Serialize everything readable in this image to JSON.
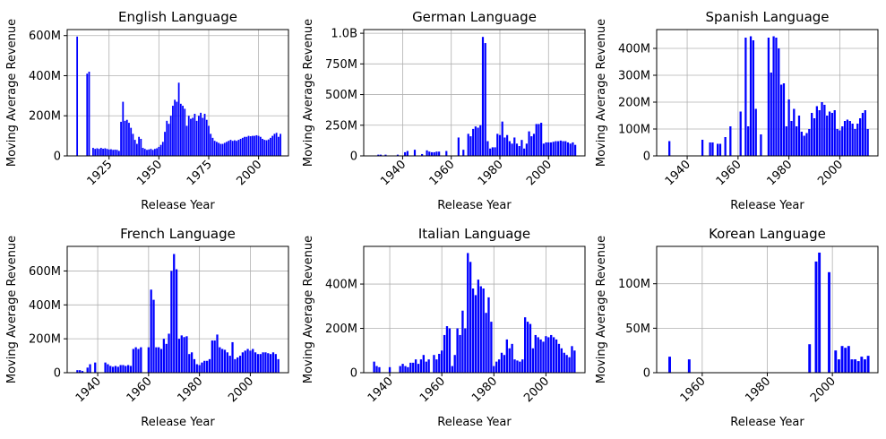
{
  "style": {
    "bar_color": "#0000ff",
    "grid_color": "#b0b0b0",
    "axis_color": "#000000"
  },
  "chart_data": [
    {
      "type": "bar",
      "title": "English Language",
      "xlabel": "Release Year",
      "ylabel": "Moving Average Revenue",
      "xlim": [
        1904,
        2015
      ],
      "ylim": [
        0,
        630000000
      ],
      "xticks": [
        1925,
        1950,
        1975,
        2000
      ],
      "yticks": [
        0,
        200000000,
        400000000,
        600000000
      ],
      "ytick_labels": [
        "0",
        "200M",
        "400M",
        "600M"
      ],
      "grid": true,
      "x": [
        1909,
        1914,
        1915,
        1917,
        1918,
        1919,
        1920,
        1921,
        1922,
        1923,
        1924,
        1925,
        1926,
        1927,
        1928,
        1929,
        1930,
        1931,
        1932,
        1933,
        1934,
        1935,
        1936,
        1937,
        1938,
        1939,
        1940,
        1941,
        1942,
        1943,
        1944,
        1945,
        1946,
        1947,
        1948,
        1949,
        1950,
        1951,
        1952,
        1953,
        1954,
        1955,
        1956,
        1957,
        1958,
        1959,
        1960,
        1961,
        1962,
        1963,
        1964,
        1965,
        1966,
        1967,
        1968,
        1969,
        1970,
        1971,
        1972,
        1973,
        1974,
        1975,
        1976,
        1977,
        1978,
        1979,
        1980,
        1981,
        1982,
        1983,
        1984,
        1985,
        1986,
        1987,
        1988,
        1989,
        1990,
        1991,
        1992,
        1993,
        1994,
        1995,
        1996,
        1997,
        1998,
        1999,
        2000,
        2001,
        2002,
        2003,
        2004,
        2005,
        2006,
        2007,
        2008,
        2009,
        2010,
        2011
      ],
      "values": [
        595000000,
        410000000,
        420000000,
        40000000,
        35000000,
        38000000,
        35000000,
        40000000,
        36000000,
        38000000,
        35000000,
        32000000,
        33000000,
        30000000,
        31000000,
        30000000,
        25000000,
        170000000,
        270000000,
        175000000,
        180000000,
        165000000,
        140000000,
        110000000,
        80000000,
        60000000,
        95000000,
        85000000,
        40000000,
        35000000,
        30000000,
        32000000,
        35000000,
        30000000,
        35000000,
        38000000,
        45000000,
        55000000,
        70000000,
        120000000,
        175000000,
        160000000,
        200000000,
        250000000,
        280000000,
        270000000,
        365000000,
        260000000,
        250000000,
        235000000,
        150000000,
        200000000,
        185000000,
        190000000,
        210000000,
        175000000,
        200000000,
        215000000,
        190000000,
        210000000,
        180000000,
        150000000,
        110000000,
        90000000,
        75000000,
        70000000,
        65000000,
        60000000,
        60000000,
        65000000,
        70000000,
        75000000,
        80000000,
        75000000,
        78000000,
        75000000,
        80000000,
        85000000,
        90000000,
        95000000,
        95000000,
        100000000,
        98000000,
        100000000,
        100000000,
        103000000,
        100000000,
        95000000,
        85000000,
        80000000,
        78000000,
        82000000,
        90000000,
        100000000,
        110000000,
        115000000,
        95000000,
        110000000
      ]
    },
    {
      "type": "bar",
      "title": "German Language",
      "xlabel": "Release Year",
      "ylabel": "Moving Average Revenue",
      "xlim": [
        1924,
        2015
      ],
      "ylim": [
        0,
        1030000000
      ],
      "xticks": [
        1940,
        1960,
        1980,
        2000
      ],
      "yticks": [
        0,
        250000000,
        500000000,
        750000000,
        1000000000
      ],
      "ytick_labels": [
        "0",
        "250M",
        "500M",
        "750M",
        "1.0B"
      ],
      "grid": true,
      "x": [
        1930,
        1931,
        1933,
        1938,
        1941,
        1942,
        1945,
        1948,
        1950,
        1951,
        1952,
        1953,
        1954,
        1955,
        1958,
        1963,
        1965,
        1967,
        1968,
        1969,
        1970,
        1971,
        1972,
        1973,
        1974,
        1975,
        1976,
        1977,
        1978,
        1979,
        1980,
        1981,
        1982,
        1983,
        1984,
        1985,
        1986,
        1987,
        1988,
        1989,
        1990,
        1991,
        1992,
        1993,
        1994,
        1995,
        1996,
        1997,
        1998,
        1999,
        2000,
        2001,
        2002,
        2003,
        2004,
        2005,
        2006,
        2007,
        2008,
        2009,
        2010,
        2011
      ],
      "values": [
        10000000,
        10000000,
        10000000,
        10000000,
        30000000,
        40000000,
        50000000,
        15000000,
        45000000,
        35000000,
        30000000,
        30000000,
        35000000,
        35000000,
        40000000,
        150000000,
        50000000,
        180000000,
        160000000,
        220000000,
        240000000,
        230000000,
        250000000,
        970000000,
        920000000,
        120000000,
        60000000,
        70000000,
        70000000,
        180000000,
        170000000,
        280000000,
        150000000,
        170000000,
        120000000,
        100000000,
        150000000,
        100000000,
        80000000,
        130000000,
        60000000,
        100000000,
        200000000,
        160000000,
        180000000,
        260000000,
        260000000,
        270000000,
        100000000,
        110000000,
        110000000,
        110000000,
        115000000,
        120000000,
        120000000,
        125000000,
        120000000,
        120000000,
        110000000,
        100000000,
        110000000,
        90000000
      ]
    },
    {
      "type": "bar",
      "title": "Spanish Language",
      "xlabel": "Release Year",
      "ylabel": "Moving Average Revenue",
      "xlim": [
        1928,
        2015
      ],
      "ylim": [
        0,
        470000000
      ],
      "xticks": [
        1940,
        1960,
        1980,
        2000
      ],
      "yticks": [
        0,
        100000000,
        200000000,
        300000000,
        400000000
      ],
      "ytick_labels": [
        "0",
        "100M",
        "200M",
        "300M",
        "400M"
      ],
      "grid": true,
      "x": [
        1933,
        1946,
        1949,
        1950,
        1952,
        1953,
        1955,
        1957,
        1961,
        1963,
        1964,
        1965,
        1966,
        1967,
        1969,
        1972,
        1973,
        1974,
        1975,
        1976,
        1977,
        1978,
        1979,
        1980,
        1981,
        1982,
        1983,
        1984,
        1985,
        1986,
        1987,
        1988,
        1989,
        1990,
        1991,
        1992,
        1993,
        1994,
        1995,
        1996,
        1997,
        1998,
        1999,
        2000,
        2001,
        2002,
        2003,
        2004,
        2005,
        2006,
        2007,
        2008,
        2009,
        2010,
        2011
      ],
      "values": [
        55000000,
        60000000,
        50000000,
        50000000,
        45000000,
        45000000,
        70000000,
        110000000,
        165000000,
        440000000,
        110000000,
        445000000,
        430000000,
        175000000,
        80000000,
        440000000,
        310000000,
        445000000,
        440000000,
        400000000,
        265000000,
        270000000,
        110000000,
        210000000,
        130000000,
        175000000,
        110000000,
        150000000,
        90000000,
        75000000,
        85000000,
        100000000,
        160000000,
        140000000,
        185000000,
        170000000,
        200000000,
        190000000,
        150000000,
        165000000,
        160000000,
        170000000,
        100000000,
        95000000,
        110000000,
        130000000,
        135000000,
        130000000,
        120000000,
        100000000,
        120000000,
        140000000,
        160000000,
        170000000,
        100000000
      ]
    },
    {
      "type": "bar",
      "title": "French Language",
      "xlabel": "Release Year",
      "ylabel": "Moving Average Revenue",
      "xlim": [
        1928,
        2015
      ],
      "ylim": [
        0,
        745000000
      ],
      "xticks": [
        1940,
        1960,
        1980,
        2000
      ],
      "yticks": [
        0,
        200000000,
        400000000,
        600000000
      ],
      "ytick_labels": [
        "0",
        "200M",
        "400M",
        "600M"
      ],
      "grid": true,
      "x": [
        1932,
        1933,
        1934,
        1936,
        1937,
        1939,
        1943,
        1944,
        1945,
        1946,
        1947,
        1948,
        1949,
        1950,
        1951,
        1952,
        1953,
        1954,
        1955,
        1956,
        1957,
        1960,
        1961,
        1962,
        1963,
        1964,
        1965,
        1966,
        1967,
        1968,
        1969,
        1970,
        1971,
        1972,
        1973,
        1974,
        1975,
        1976,
        1977,
        1978,
        1979,
        1980,
        1981,
        1982,
        1983,
        1984,
        1985,
        1986,
        1987,
        1988,
        1989,
        1990,
        1991,
        1992,
        1993,
        1994,
        1995,
        1996,
        1997,
        1998,
        1999,
        2000,
        2001,
        2002,
        2003,
        2004,
        2005,
        2006,
        2007,
        2008,
        2009,
        2010,
        2011
      ],
      "values": [
        15000000,
        15000000,
        10000000,
        30000000,
        50000000,
        60000000,
        60000000,
        50000000,
        40000000,
        35000000,
        40000000,
        35000000,
        45000000,
        45000000,
        40000000,
        45000000,
        40000000,
        140000000,
        150000000,
        140000000,
        150000000,
        150000000,
        490000000,
        430000000,
        150000000,
        150000000,
        140000000,
        200000000,
        170000000,
        230000000,
        600000000,
        700000000,
        610000000,
        200000000,
        220000000,
        210000000,
        215000000,
        110000000,
        120000000,
        80000000,
        50000000,
        45000000,
        60000000,
        70000000,
        70000000,
        80000000,
        190000000,
        190000000,
        225000000,
        150000000,
        140000000,
        135000000,
        120000000,
        100000000,
        180000000,
        80000000,
        90000000,
        100000000,
        120000000,
        130000000,
        140000000,
        130000000,
        140000000,
        120000000,
        110000000,
        110000000,
        120000000,
        120000000,
        115000000,
        110000000,
        120000000,
        110000000,
        80000000
      ]
    },
    {
      "type": "bar",
      "title": "Italian Language",
      "xlabel": "Release Year",
      "ylabel": "Moving Average Revenue",
      "xlim": [
        1930,
        2015
      ],
      "ylim": [
        0,
        570000000
      ],
      "xticks": [
        1940,
        1960,
        1980,
        2000
      ],
      "yticks": [
        0,
        200000000,
        400000000
      ],
      "ytick_labels": [
        "0",
        "200M",
        "400M"
      ],
      "grid": true,
      "x": [
        1934,
        1935,
        1936,
        1940,
        1944,
        1945,
        1946,
        1947,
        1948,
        1949,
        1950,
        1951,
        1952,
        1953,
        1954,
        1955,
        1957,
        1958,
        1959,
        1960,
        1961,
        1962,
        1963,
        1964,
        1965,
        1966,
        1967,
        1968,
        1969,
        1970,
        1971,
        1972,
        1973,
        1974,
        1975,
        1976,
        1977,
        1978,
        1979,
        1980,
        1981,
        1982,
        1983,
        1984,
        1985,
        1986,
        1987,
        1988,
        1989,
        1990,
        1991,
        1992,
        1993,
        1994,
        1995,
        1996,
        1997,
        1998,
        1999,
        2000,
        2001,
        2002,
        2003,
        2004,
        2005,
        2006,
        2007,
        2008,
        2009,
        2010,
        2011
      ],
      "values": [
        50000000,
        30000000,
        25000000,
        25000000,
        30000000,
        40000000,
        30000000,
        25000000,
        45000000,
        45000000,
        60000000,
        40000000,
        60000000,
        80000000,
        50000000,
        60000000,
        80000000,
        60000000,
        85000000,
        100000000,
        170000000,
        210000000,
        200000000,
        30000000,
        80000000,
        200000000,
        170000000,
        280000000,
        200000000,
        540000000,
        500000000,
        380000000,
        350000000,
        420000000,
        390000000,
        380000000,
        270000000,
        340000000,
        230000000,
        30000000,
        50000000,
        60000000,
        90000000,
        80000000,
        150000000,
        110000000,
        130000000,
        60000000,
        55000000,
        50000000,
        60000000,
        250000000,
        230000000,
        220000000,
        110000000,
        170000000,
        160000000,
        150000000,
        140000000,
        165000000,
        160000000,
        170000000,
        160000000,
        150000000,
        130000000,
        110000000,
        90000000,
        80000000,
        70000000,
        120000000,
        100000000
      ]
    },
    {
      "type": "bar",
      "title": "Korean Language",
      "xlabel": "Release Year",
      "ylabel": "Moving Average Revenue",
      "xlim": [
        1946,
        2014
      ],
      "ylim": [
        0,
        142000000
      ],
      "xticks": [
        1960,
        1980,
        2000
      ],
      "yticks": [
        0,
        50000000,
        100000000
      ],
      "ytick_labels": [
        "0",
        "50M",
        "100M"
      ],
      "grid": true,
      "x": [
        1950,
        1956,
        1993,
        1995,
        1996,
        1999,
        2001,
        2002,
        2003,
        2004,
        2005,
        2006,
        2007,
        2008,
        2009,
        2010,
        2011
      ],
      "values": [
        18000000,
        15000000,
        32000000,
        125000000,
        135000000,
        113000000,
        25000000,
        15000000,
        30000000,
        28000000,
        30000000,
        15000000,
        15000000,
        13000000,
        18000000,
        15000000,
        19000000
      ]
    }
  ]
}
